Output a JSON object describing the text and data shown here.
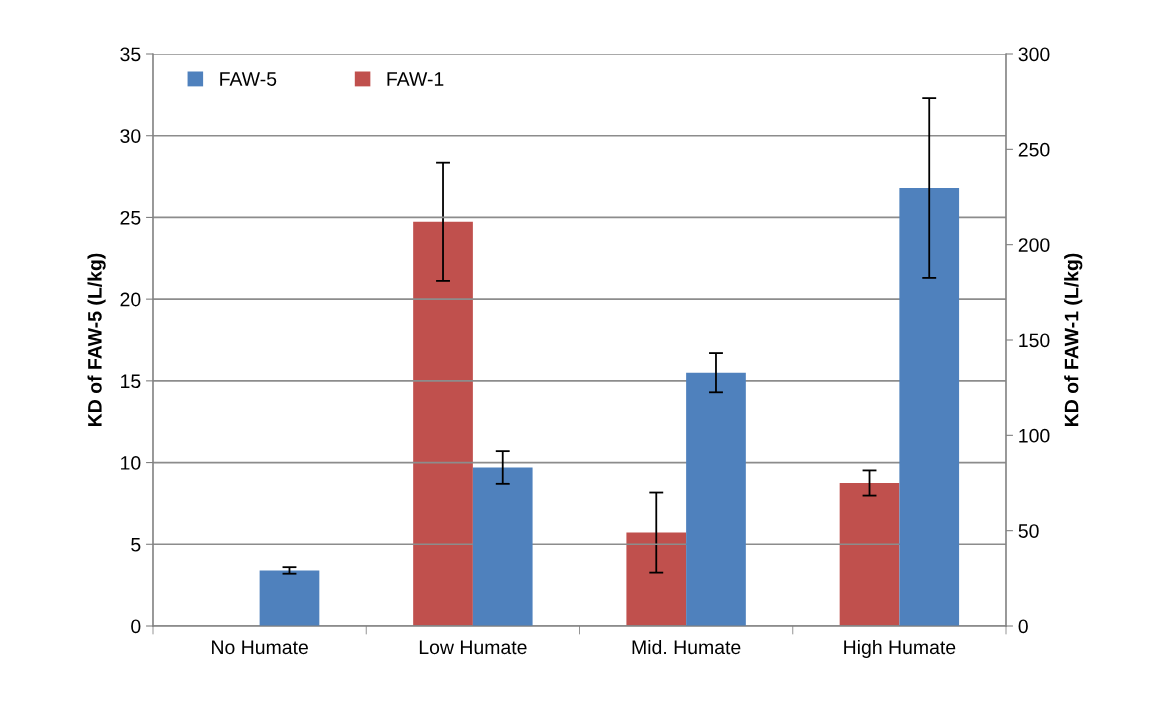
{
  "chart_data": {
    "type": "bar",
    "ylabel": "KD of FAW-5 (L/kg)",
    "y2label": "KD of FAW-1 (L/kg)",
    "categories": [
      "No Humate",
      "Low Humate",
      "Mid. Humate",
      "High Humate"
    ],
    "series": [
      {
        "name": "FAW-1",
        "color": "#c0504d",
        "axis": "y2",
        "values": [
          null,
          212,
          49,
          75
        ],
        "errors": [
          null,
          31,
          21,
          6.6
        ]
      },
      {
        "name": "FAW-5",
        "color": "#4f81bd",
        "values": [
          3.4,
          9.7,
          15.5,
          26.8
        ],
        "errors": [
          0.2,
          1.0,
          1.2,
          5.5
        ]
      }
    ],
    "ylim": [
      0,
      35
    ],
    "yticks": [
      0,
      5,
      10,
      15,
      20,
      25,
      30,
      35
    ],
    "y2lim": [
      0,
      300
    ],
    "y2ticks": [
      0,
      50,
      100,
      150,
      200,
      250,
      300
    ],
    "grid": "y",
    "legend": "top left"
  }
}
